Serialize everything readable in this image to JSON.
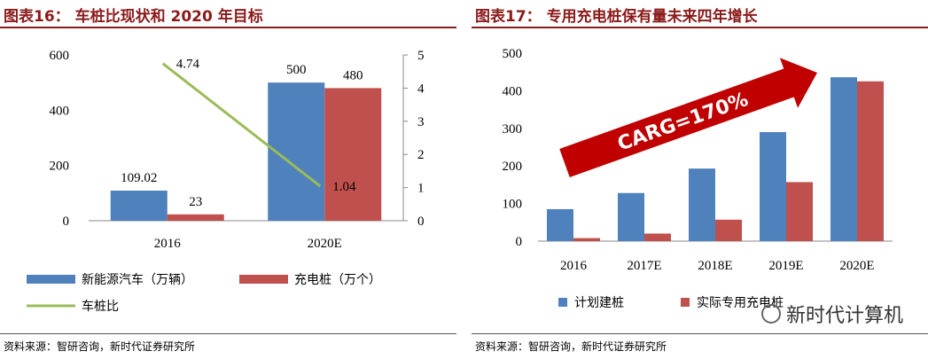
{
  "left": {
    "title": "图表16：  车桩比现状和 2020 年目标",
    "source": "资料来源：智研咨询，新时代证券研究所",
    "chart_data": {
      "type": "bar",
      "categories": [
        "2016",
        "2020E"
      ],
      "ylim": [
        0,
        600
      ],
      "yticks": [
        "0",
        "200",
        "400",
        "600"
      ],
      "y2lim": [
        0,
        5
      ],
      "y2ticks": [
        "0",
        "1",
        "2",
        "3",
        "4",
        "5"
      ],
      "series": [
        {
          "name": "新能源汽车（万辆）",
          "values": [
            109.02,
            500
          ],
          "labels": [
            "109.02",
            "500"
          ],
          "color": "#4f81bd",
          "axis": "left"
        },
        {
          "name": "充电桩（万个）",
          "values": [
            23,
            480
          ],
          "labels": [
            "23",
            "480"
          ],
          "color": "#c0504d",
          "axis": "left"
        },
        {
          "name": "车桩比",
          "type": "line",
          "values": [
            4.74,
            1.04
          ],
          "labels": [
            "4.74",
            "1.04"
          ],
          "color": "#9bbb59",
          "axis": "right"
        }
      ]
    }
  },
  "right": {
    "title": "图表17：  专用充电桩保有量未来四年增长",
    "source": "资料来源：智研咨询，新时代证券研究所",
    "arrow_label": "CARG=170%",
    "watermark": "新时代计算机",
    "chart_data": {
      "type": "bar",
      "categories": [
        "2016",
        "2017E",
        "2018E",
        "2019E",
        "2020E"
      ],
      "ylim": [
        0,
        500
      ],
      "yticks": [
        "0",
        "100",
        "200",
        "300",
        "400",
        "500"
      ],
      "series": [
        {
          "name": "计划建桩",
          "values": [
            85,
            128,
            193,
            290,
            436
          ],
          "color": "#4f81bd"
        },
        {
          "name": "实际专用充电桩",
          "values": [
            8,
            20,
            57,
            157,
            425
          ],
          "color": "#c0504d"
        }
      ]
    }
  }
}
